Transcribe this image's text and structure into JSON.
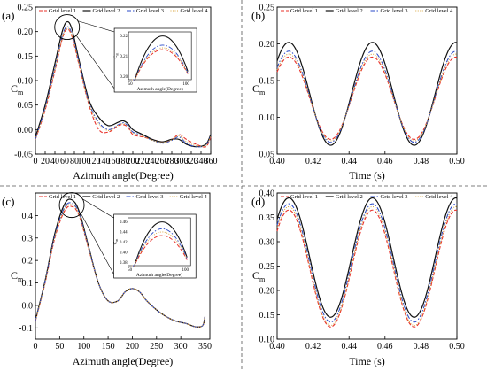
{
  "legend": [
    "Grid level 1",
    "Grid level 2",
    "Grid level 3",
    "Grid level 4"
  ],
  "series_styles": [
    {
      "color": "#e8302a",
      "dash": "4 2",
      "width": 1.1
    },
    {
      "color": "#111111",
      "dash": "",
      "width": 1.2
    },
    {
      "color": "#2848c8",
      "dash": "5 2 1.5 2",
      "width": 1.0
    },
    {
      "color": "#d9a640",
      "dash": "1 1.5",
      "width": 1.0
    }
  ],
  "chart_data": [
    {
      "panel": "(a)",
      "type": "line",
      "xlabel": "Azimuth angle(Degree)",
      "ylabel": "C_m",
      "xlim": [
        0,
        360
      ],
      "ylim": [
        -0.05,
        0.25
      ],
      "xticks": [
        0,
        20,
        40,
        60,
        80,
        100,
        120,
        140,
        160,
        180,
        200,
        220,
        240,
        260,
        280,
        300,
        320,
        340,
        360
      ],
      "yticks": [
        -0.05,
        0.0,
        0.05,
        0.1,
        0.15,
        0.2,
        0.25
      ],
      "ytick_labels": [
        "-0.05",
        "0.00",
        "0.05",
        "0.10",
        "0.15",
        "0.20",
        "0.25"
      ],
      "series": [
        {
          "name": "Grid level 1",
          "x": [
            0,
            20,
            40,
            55,
            65,
            75,
            90,
            110,
            130,
            150,
            170,
            180,
            190,
            200,
            220,
            240,
            260,
            280,
            295,
            310,
            330,
            350,
            360
          ],
          "values": [
            -0.02,
            0.04,
            0.12,
            0.185,
            0.205,
            0.19,
            0.13,
            0.05,
            0.0,
            -0.005,
            0.008,
            0.01,
            0.005,
            -0.01,
            -0.015,
            -0.02,
            -0.025,
            -0.02,
            -0.01,
            -0.02,
            -0.03,
            -0.035,
            -0.015
          ]
        },
        {
          "name": "Grid level 2",
          "x": [
            0,
            20,
            40,
            55,
            65,
            75,
            90,
            110,
            130,
            150,
            170,
            180,
            190,
            200,
            220,
            240,
            260,
            280,
            295,
            310,
            330,
            350,
            360
          ],
          "values": [
            -0.015,
            0.05,
            0.135,
            0.2,
            0.22,
            0.205,
            0.14,
            0.06,
            0.025,
            0.008,
            0.015,
            0.018,
            0.012,
            0.0,
            -0.01,
            -0.02,
            -0.025,
            -0.02,
            -0.02,
            -0.03,
            -0.035,
            -0.03,
            -0.01
          ]
        },
        {
          "name": "Grid level 3",
          "x": [
            0,
            20,
            40,
            55,
            65,
            75,
            90,
            110,
            130,
            150,
            170,
            180,
            190,
            200,
            220,
            240,
            260,
            280,
            295,
            310,
            330,
            350,
            360
          ],
          "values": [
            -0.02,
            0.045,
            0.125,
            0.19,
            0.21,
            0.195,
            0.135,
            0.055,
            0.015,
            0.0,
            0.01,
            0.014,
            0.008,
            -0.005,
            -0.012,
            -0.022,
            -0.028,
            -0.022,
            -0.015,
            -0.028,
            -0.035,
            -0.032,
            -0.012
          ]
        },
        {
          "name": "Grid level 4",
          "x": [
            0,
            20,
            40,
            55,
            65,
            75,
            90,
            110,
            130,
            150,
            170,
            180,
            190,
            200,
            220,
            240,
            260,
            280,
            295,
            310,
            330,
            350,
            360
          ],
          "values": [
            -0.02,
            0.042,
            0.122,
            0.188,
            0.207,
            0.192,
            0.132,
            0.052,
            0.012,
            -0.002,
            0.009,
            0.012,
            0.006,
            -0.007,
            -0.013,
            -0.022,
            -0.027,
            -0.021,
            -0.013,
            -0.025,
            -0.033,
            -0.033,
            -0.013
          ]
        }
      ],
      "inset": {
        "xlabel": "Azimuth angle(Degree)",
        "ylabel": "C_m",
        "xticks": [
          "50",
          "100"
        ],
        "yticks": [
          "0.22",
          "0.21",
          "0.20"
        ]
      }
    },
    {
      "panel": "(b)",
      "type": "line",
      "xlabel": "Time (s)",
      "ylabel": "C_m",
      "xlim": [
        0.4,
        0.5
      ],
      "ylim": [
        0.05,
        0.25
      ],
      "xticks": [
        0.4,
        0.42,
        0.44,
        0.46,
        0.48,
        0.5
      ],
      "xtick_labels": [
        "0.40",
        "0.42",
        "0.44",
        "0.46",
        "0.48",
        "0.50"
      ],
      "yticks": [
        0.05,
        0.1,
        0.15,
        0.2,
        0.25
      ],
      "ytick_labels": [
        "0.05",
        "0.10",
        "0.15",
        "0.20",
        "0.25"
      ],
      "period": 0.0465,
      "series": [
        {
          "name": "Grid level 1",
          "max": 0.182,
          "min": 0.07,
          "peak_t": 0.4065
        },
        {
          "name": "Grid level 2",
          "max": 0.202,
          "min": 0.062,
          "peak_t": 0.4065
        },
        {
          "name": "Grid level 3",
          "max": 0.19,
          "min": 0.066,
          "peak_t": 0.4065
        },
        {
          "name": "Grid level 4",
          "max": 0.186,
          "min": 0.068,
          "peak_t": 0.4065
        }
      ]
    },
    {
      "panel": "(c)",
      "type": "line",
      "xlabel": "Azimuth angle(Degree)",
      "ylabel": "C_m",
      "xlim": [
        0,
        360
      ],
      "ylim": [
        -0.15,
        0.5
      ],
      "xticks": [
        0,
        50,
        100,
        150,
        200,
        250,
        300,
        350
      ],
      "yticks": [
        -0.1,
        0.0,
        0.1,
        0.2,
        0.3,
        0.4
      ],
      "ytick_labels": [
        "-0.1",
        "0.0",
        "0.1",
        "0.2",
        "0.3",
        "0.4"
      ],
      "series": [
        {
          "name": "Grid level 1",
          "x": [
            0,
            20,
            40,
            60,
            75,
            90,
            110,
            130,
            150,
            170,
            185,
            200,
            215,
            230,
            250,
            270,
            290,
            310,
            330,
            345,
            350
          ],
          "values": [
            -0.07,
            0.1,
            0.3,
            0.42,
            0.44,
            0.4,
            0.25,
            0.1,
            0.02,
            0.02,
            0.06,
            0.075,
            0.06,
            0.02,
            -0.02,
            -0.05,
            -0.07,
            -0.08,
            -0.095,
            -0.09,
            -0.05
          ]
        },
        {
          "name": "Grid level 2",
          "x": [
            0,
            20,
            40,
            60,
            75,
            90,
            110,
            130,
            150,
            170,
            185,
            200,
            215,
            230,
            250,
            270,
            290,
            310,
            330,
            345,
            350
          ],
          "values": [
            -0.065,
            0.11,
            0.32,
            0.45,
            0.47,
            0.42,
            0.26,
            0.1,
            0.02,
            0.02,
            0.06,
            0.075,
            0.06,
            0.02,
            -0.02,
            -0.05,
            -0.07,
            -0.08,
            -0.095,
            -0.09,
            -0.05
          ]
        },
        {
          "name": "Grid level 3",
          "x": [
            0,
            20,
            40,
            60,
            75,
            90,
            110,
            130,
            150,
            170,
            185,
            200,
            215,
            230,
            250,
            270,
            290,
            310,
            330,
            345,
            350
          ],
          "values": [
            -0.068,
            0.105,
            0.31,
            0.435,
            0.455,
            0.41,
            0.255,
            0.1,
            0.02,
            0.02,
            0.06,
            0.075,
            0.06,
            0.02,
            -0.02,
            -0.05,
            -0.07,
            -0.08,
            -0.095,
            -0.09,
            -0.05
          ]
        },
        {
          "name": "Grid level 4",
          "x": [
            0,
            20,
            40,
            60,
            75,
            90,
            110,
            130,
            150,
            170,
            185,
            200,
            215,
            230,
            250,
            270,
            290,
            310,
            330,
            345,
            350
          ],
          "values": [
            -0.07,
            0.102,
            0.305,
            0.428,
            0.448,
            0.405,
            0.252,
            0.1,
            0.02,
            0.02,
            0.06,
            0.075,
            0.06,
            0.02,
            -0.02,
            -0.05,
            -0.07,
            -0.08,
            -0.095,
            -0.09,
            -0.05
          ]
        }
      ],
      "inset": {
        "xlabel": "Azimuth angle(Degree)",
        "ylabel": "C_m",
        "xticks": [
          "50",
          "100"
        ],
        "yticks": [
          "0.46",
          "0.44",
          "0.42",
          "0.40",
          "0.38"
        ]
      }
    },
    {
      "panel": "(d)",
      "type": "line",
      "xlabel": "Time (s)",
      "ylabel": "C_m",
      "xlim": [
        0.4,
        0.5
      ],
      "ylim": [
        0.1,
        0.4
      ],
      "xticks": [
        0.4,
        0.42,
        0.44,
        0.46,
        0.48,
        0.5
      ],
      "xtick_labels": [
        "0.40",
        "0.42",
        "0.44",
        "0.46",
        "0.48",
        "0.50"
      ],
      "yticks": [
        0.1,
        0.15,
        0.2,
        0.25,
        0.3,
        0.35,
        0.4
      ],
      "ytick_labels": [
        "0.10",
        "0.15",
        "0.20",
        "0.25",
        "0.30",
        "0.35",
        "0.40"
      ],
      "period": 0.0465,
      "series": [
        {
          "name": "Grid level 1",
          "max": 0.365,
          "min": 0.125,
          "peak_t": 0.4065
        },
        {
          "name": "Grid level 2",
          "max": 0.39,
          "min": 0.145,
          "peak_t": 0.4065
        },
        {
          "name": "Grid level 3",
          "max": 0.378,
          "min": 0.135,
          "peak_t": 0.4065
        },
        {
          "name": "Grid level 4",
          "max": 0.372,
          "min": 0.128,
          "peak_t": 0.4065
        }
      ]
    }
  ]
}
